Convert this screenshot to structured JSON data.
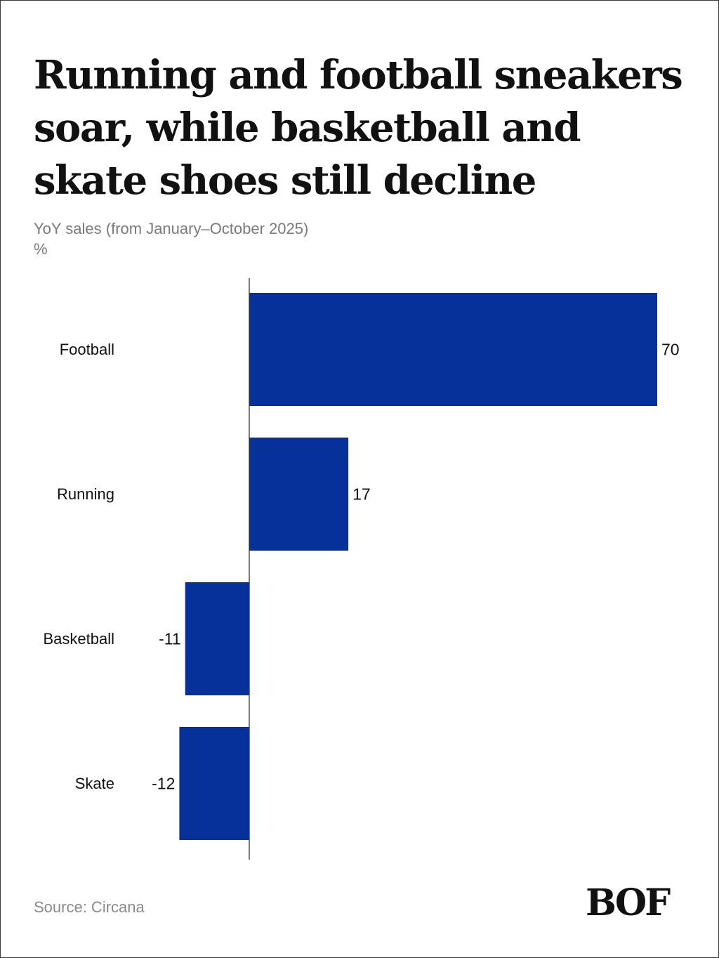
{
  "title": "Running and football sneakers soar, while basketball and skate shoes still decline",
  "subtitle": "YoY sales (from January–October 2025)",
  "unit": "%",
  "source": "Source: Circana",
  "logo": "BOF",
  "colors": {
    "bar": "#06309a",
    "text": "#111111",
    "muted": "#7a7a7a",
    "axis": "#222222"
  },
  "chart_data": {
    "type": "bar",
    "orientation": "horizontal",
    "title": "Running and football sneakers soar, while basketball and skate shoes still decline",
    "subtitle": "YoY sales (from January–October 2025)",
    "xlabel": "%",
    "ylabel": "",
    "categories": [
      "Football",
      "Running",
      "Basketball",
      "Skate"
    ],
    "values": [
      70,
      17,
      -11,
      -12
    ],
    "value_labels": [
      "70",
      "17",
      "-11",
      "-12"
    ],
    "xlim": [
      -12,
      70
    ],
    "grid": false,
    "legend": "none"
  }
}
